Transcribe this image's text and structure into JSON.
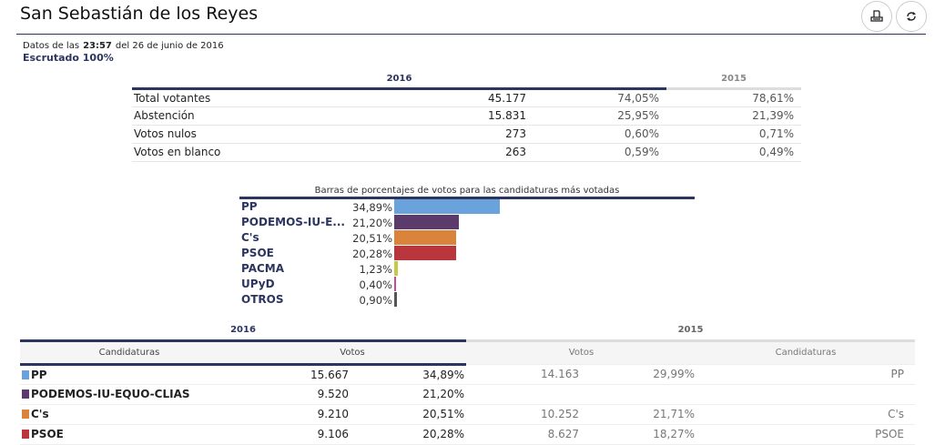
{
  "title": "San Sebastián de los Reyes",
  "header": {
    "dates_prefix": "Datos de las",
    "time": "23:57",
    "dates_suffix": "del 26 de junio de 2016",
    "escrutado": "Escrutado 100%"
  },
  "summary": {
    "year_2016": "2016",
    "year_2015": "2015",
    "rows": [
      {
        "label": "Total votantes",
        "value": "45.177",
        "pct_2016": "74,05%",
        "pct_2015": "78,61%"
      },
      {
        "label": "Abstención",
        "value": "15.831",
        "pct_2016": "25,95%",
        "pct_2015": "21,39%"
      },
      {
        "label": "Votos nulos",
        "value": "273",
        "pct_2016": "0,60%",
        "pct_2015": "0,71%"
      },
      {
        "label": "Votos en blanco",
        "value": "263",
        "pct_2016": "0,59%",
        "pct_2015": "0,49%"
      }
    ]
  },
  "chart_data": {
    "type": "bar",
    "orientation": "horizontal",
    "title": "Barras de porcentajes de votos para las candidaturas más votadas",
    "categories": [
      "PP",
      "PODEMOS-IU-E...",
      "C's",
      "PSOE",
      "PACMA",
      "UPyD",
      "OTROS"
    ],
    "values": [
      34.89,
      21.2,
      20.51,
      20.28,
      1.23,
      0.4,
      0.9
    ],
    "labels": [
      "34,89%",
      "21,20%",
      "20,51%",
      "20,28%",
      "1,23%",
      "0,40%",
      "0,90%"
    ],
    "colors": [
      "#6aa3db",
      "#5b3b6b",
      "#d9843a",
      "#b9373c",
      "#c8c845",
      "#c8489a",
      "#555555"
    ]
  },
  "results": {
    "year_2016": "2016",
    "year_2015": "2015",
    "col_candidaturas": "Candidaturas",
    "col_votos": "Votos",
    "rows": [
      {
        "name": "PP",
        "color": "#6aa3db",
        "votes": "15.667",
        "pct": "34,89%",
        "votes_2015": "14.163",
        "pct_2015": "29,99%",
        "name_2015": "PP"
      },
      {
        "name": "PODEMOS-IU-EQUO-CLIAS",
        "color": "#5b3b6b",
        "votes": "9.520",
        "pct": "21,20%",
        "votes_2015": "",
        "pct_2015": "",
        "name_2015": ""
      },
      {
        "name": "C's",
        "color": "#d9843a",
        "votes": "9.210",
        "pct": "20,51%",
        "votes_2015": "10.252",
        "pct_2015": "21,71%",
        "name_2015": "C's"
      },
      {
        "name": "PSOE",
        "color": "#b9373c",
        "votes": "9.106",
        "pct": "20,28%",
        "votes_2015": "8.627",
        "pct_2015": "18,27%",
        "name_2015": "PSOE"
      }
    ]
  }
}
